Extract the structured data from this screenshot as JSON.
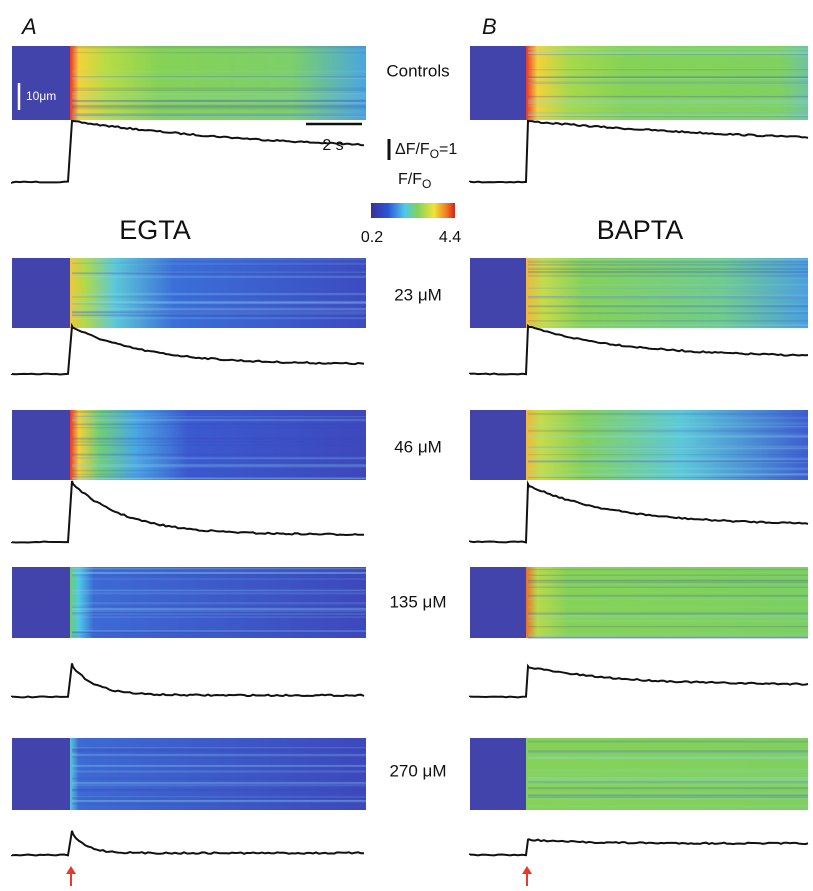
{
  "panels": {
    "A": {
      "label": "A",
      "condition": "EGTA"
    },
    "B": {
      "label": "B",
      "condition": "BAPTA"
    }
  },
  "rows": [
    "Controls",
    "23 μM",
    "46 μM",
    "135 μM",
    "270 μM"
  ],
  "scale_bars": {
    "length": "10μm",
    "time": "2 s",
    "amplitude": {
      "text": "ΔF/F",
      "sub": "O",
      "tail": "=1"
    }
  },
  "colorbar": {
    "title": "F/F",
    "title_sub": "O",
    "min_label": "0.2",
    "max_label": "4.4"
  }
}
